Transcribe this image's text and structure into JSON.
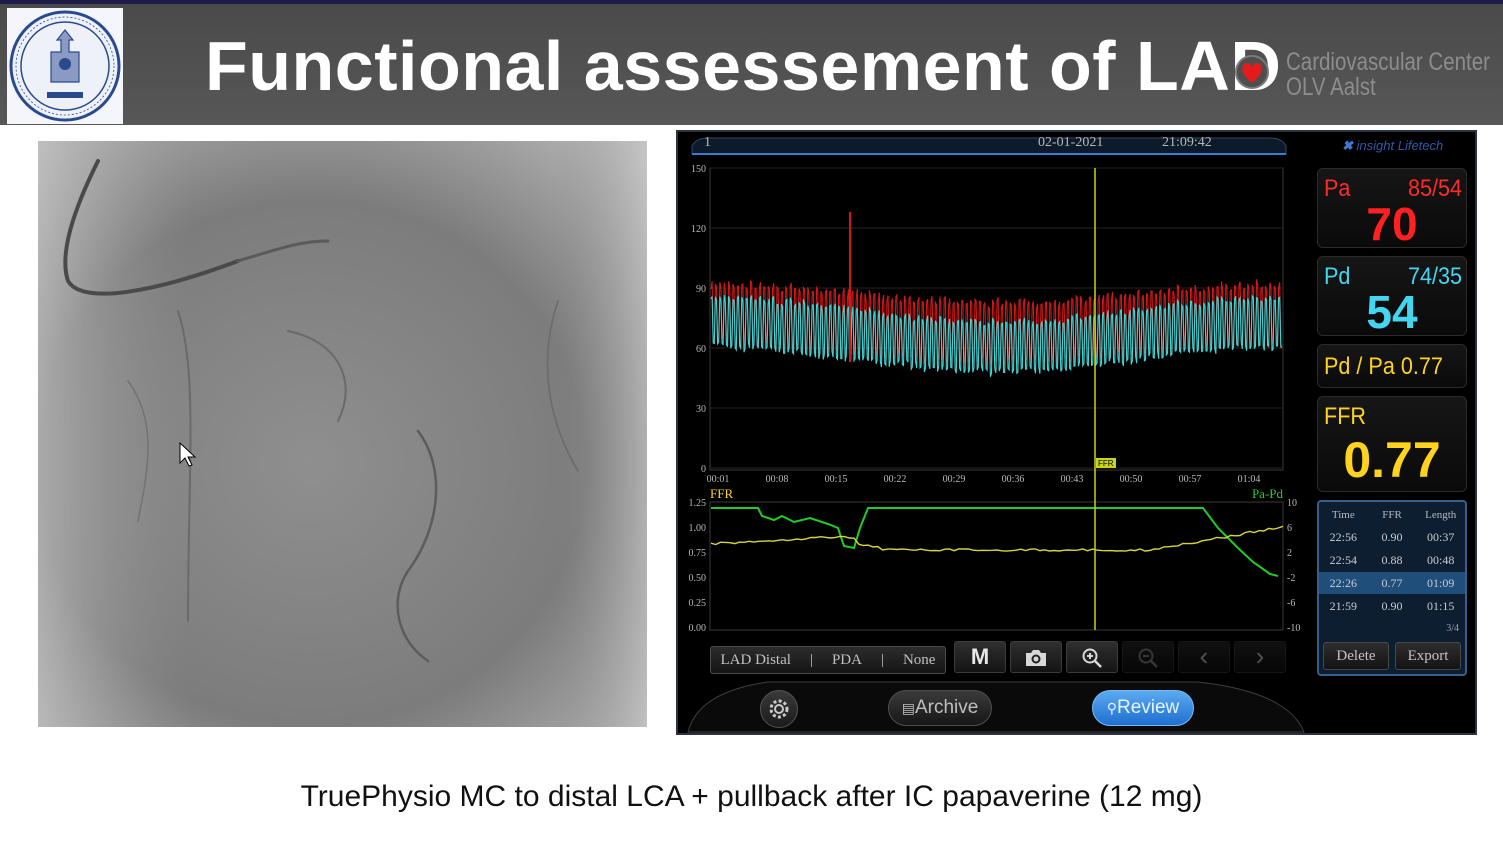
{
  "slide": {
    "title": "Functional assessement of LAD",
    "center_line1": "Cardiovascular Center",
    "center_line2": "OLV Aalst",
    "caption": "TruePhysio MC to distal LCA + pullback after IC papaverine (12 mg)",
    "seal_icon": "university-seal-icon"
  },
  "monitor": {
    "channel": "1",
    "date": "02-01-2021",
    "time": "21:09:42",
    "brand": "insight Lifetech",
    "pa_label": "Pa",
    "pa_range": "85/54",
    "pa_mean": "70",
    "pd_label": "Pd",
    "pd_range": "74/35",
    "pd_mean": "54",
    "ratio_text": "Pd / Pa 0.77",
    "ffr_label": "FFR",
    "ffr_value": "0.77",
    "marker_label": "FFR",
    "pressure_y_ticks": [
      "150",
      "120",
      "90",
      "60",
      "30",
      "0"
    ],
    "time_ticks": [
      "00:01",
      "00:08",
      "00:15",
      "00:22",
      "00:29",
      "00:36",
      "00:43",
      "00:50",
      "00:57",
      "01:04"
    ],
    "ffr_axis_label": "FFR",
    "papd_axis_label": "Pa-Pd",
    "ffr_y_ticks": [
      "1.25",
      "1.00",
      "0.75",
      "0.50",
      "0.25",
      "0.00"
    ],
    "papd_y_ticks": [
      "10",
      "6",
      "2",
      "-2",
      "-6",
      "-10"
    ],
    "colors": {
      "pa": "#d01818",
      "pd": "#3fd4d4",
      "ffr": "#1fcc2a",
      "papd": "#d6d63a",
      "cursor": "#c8d418",
      "ratio_text": "#ffd21e",
      "pa_text": "#ff2a2a",
      "pd_text": "#44d6f0"
    },
    "location": {
      "distal": "LAD Distal",
      "sep1": "|",
      "proximal": "PDA",
      "sep2": "|",
      "other": "None"
    },
    "tools": {
      "marker": "M",
      "camera_icon": "camera-icon",
      "zoom_in_icon": "zoom-in-icon",
      "zoom_out_icon": "zoom-out-icon",
      "prev": "‹",
      "next": "›"
    },
    "table": {
      "headers": [
        "Time",
        "FFR",
        "Length"
      ],
      "rows": [
        [
          "22:56",
          "0.90",
          "00:37"
        ],
        [
          "22:54",
          "0.88",
          "00:48"
        ],
        [
          "22:26",
          "0.77",
          "01:09"
        ],
        [
          "21:59",
          "0.90",
          "01:15"
        ]
      ],
      "page": "3/4",
      "delete_label": "Delete",
      "export_label": "Export"
    },
    "nav": {
      "settings_icon": "gear-icon",
      "archive_label": "Archive",
      "review_label": "Review"
    }
  }
}
